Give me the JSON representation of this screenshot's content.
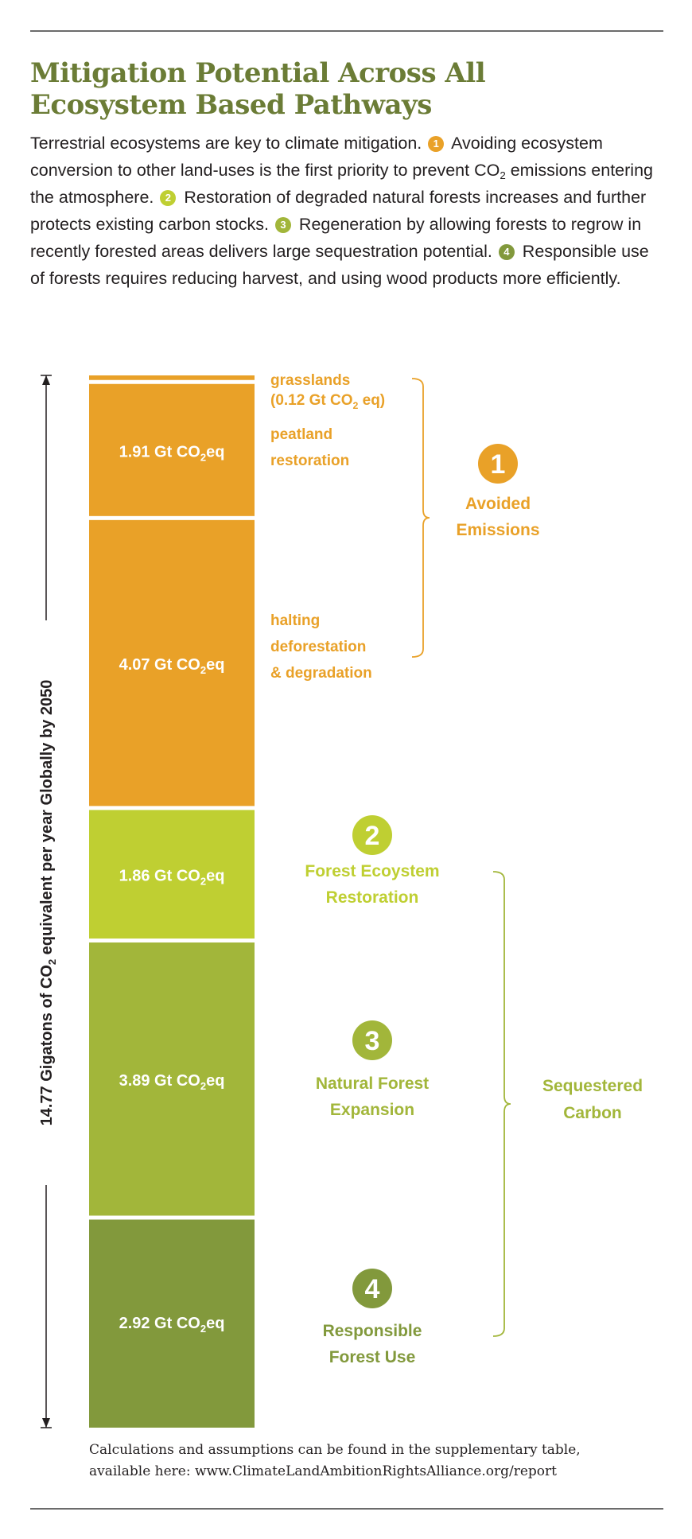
{
  "title": [
    "Mitigation Potential Across All",
    "Ecosystem Based Pathways"
  ],
  "intro": {
    "p0": "Terrestrial ecosystems are key to climate mitigation.",
    "p1": "Avoiding ecosystem conversion to other land-uses is the first priority to prevent CO",
    "p1b": " emissions entering the atmosphere.",
    "p2": "Restoration of degraded natural forests increases and further protects existing carbon stocks.",
    "p3": "Regeneration by allowing forests to regrow in recently forested areas delivers large sequestration potential.",
    "p4": "Responsible use of forests requires reducing harvest, and using wood products more efficiently.",
    "sub2": "2",
    "badges": [
      "1",
      "2",
      "3",
      "4"
    ]
  },
  "colors": {
    "orange": "#e9a128",
    "lime": "#bfcf32",
    "green": "#a2b63a",
    "olive": "#82993c",
    "title": "#6b7c36"
  },
  "chart_data": {
    "type": "bar",
    "stacked": true,
    "axis_label": "14.77 Gigatons of CO₂ equivalent per year Globally by 2050",
    "total": 14.77,
    "unit": "Gt CO₂eq",
    "segments": [
      {
        "label": "grasslands",
        "value": 0.12,
        "value_label": "(0.12 Gt CO₂ eq)",
        "group": 1,
        "color": "#e9a128"
      },
      {
        "label": "peatland restoration",
        "value": 1.91,
        "value_label": "1.91 Gt CO₂eq",
        "group": 1,
        "color": "#e9a128"
      },
      {
        "label": "halting deforestation & degradation",
        "value": 4.07,
        "value_label": "4.07 Gt CO₂eq",
        "group": 1,
        "color": "#e9a128"
      },
      {
        "label": "Forest Ecoystem Restoration",
        "value": 1.86,
        "value_label": "1.86 Gt CO₂eq",
        "group": 2,
        "color": "#bfcf32"
      },
      {
        "label": "Natural Forest Expansion",
        "value": 3.89,
        "value_label": "3.89 Gt CO₂eq",
        "group": 3,
        "color": "#a2b63a"
      },
      {
        "label": "Responsible Forest Use",
        "value": 2.92,
        "value_label": "2.92 Gt CO₂eq",
        "group": 4,
        "color": "#82993c"
      }
    ],
    "segment_text": {
      "grasslands": [
        "grasslands",
        "(0.12 Gt CO₂ eq)"
      ],
      "peatland": [
        "peatland",
        "restoration"
      ],
      "halting": [
        "halting",
        "deforestation",
        "& degradation"
      ]
    },
    "groups": [
      {
        "id": 1,
        "number": "1",
        "label": [
          "Avoided",
          "Emissions"
        ]
      },
      {
        "id": 2,
        "number": "2",
        "label": [
          "Forest Ecoystem",
          "Restoration"
        ]
      },
      {
        "id": 3,
        "number": "3",
        "label": [
          "Natural Forest",
          "Expansion"
        ]
      },
      {
        "id": 4,
        "number": "4",
        "label": [
          "Responsible",
          "Forest Use"
        ]
      }
    ],
    "bracket_label": [
      "Sequestered",
      "Carbon"
    ]
  },
  "footnote": [
    "Calculations and assumptions can be found in the supplementary table,",
    "available here: www.ClimateLandAmbitionRightsAlliance.org/report"
  ]
}
